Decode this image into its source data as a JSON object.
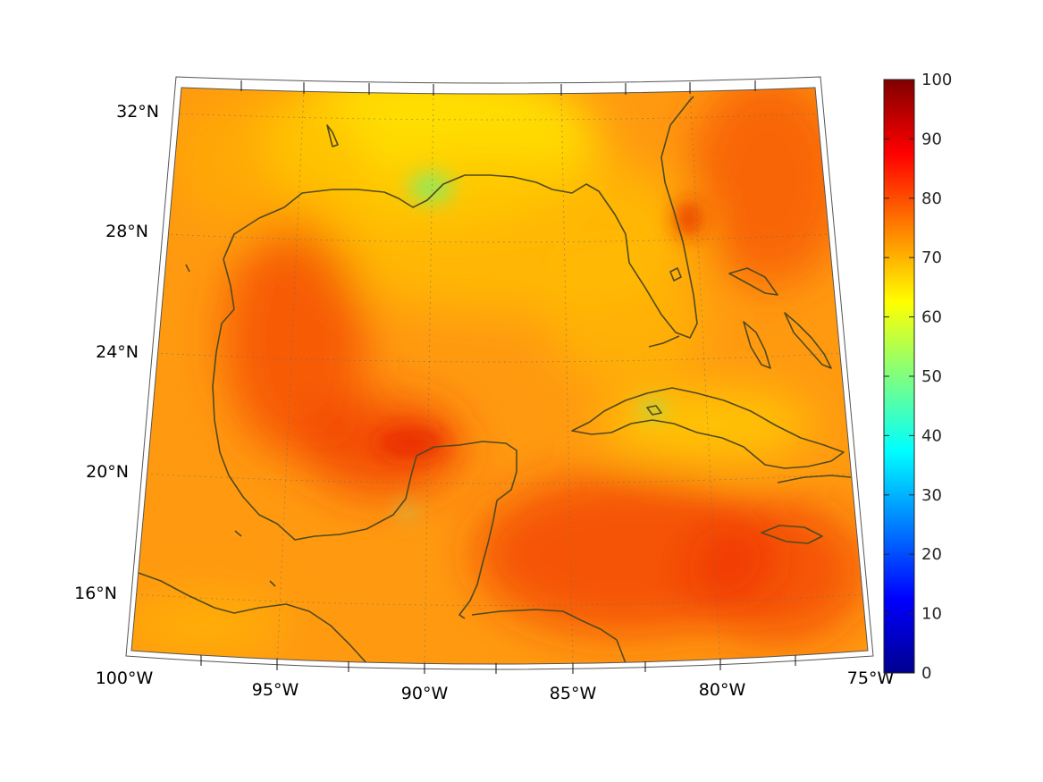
{
  "map": {
    "lat_labels": [
      {
        "deg": 32,
        "text": "32°N"
      },
      {
        "deg": 28,
        "text": "28°N"
      },
      {
        "deg": 24,
        "text": "24°N"
      },
      {
        "deg": 20,
        "text": "20°N"
      },
      {
        "deg": 16,
        "text": "16°N"
      }
    ],
    "lon_labels": [
      {
        "deg": -100,
        "text": "100°W"
      },
      {
        "deg": -95,
        "text": "95°W"
      },
      {
        "deg": -90,
        "text": "90°W"
      },
      {
        "deg": -85,
        "text": "85°W"
      },
      {
        "deg": -80,
        "text": "80°W"
      },
      {
        "deg": -75,
        "text": "75°W"
      }
    ],
    "extent": {
      "lon": [
        -100,
        -75
      ],
      "lat": [
        14,
        33
      ]
    },
    "projection": "conic",
    "coastline_color": "#4f4a1e"
  },
  "colorbar": {
    "min": 0,
    "max": 100,
    "colormap": "jet",
    "ticks": [
      "0",
      "10",
      "20",
      "30",
      "40",
      "50",
      "60",
      "70",
      "80",
      "90",
      "100"
    ]
  }
}
